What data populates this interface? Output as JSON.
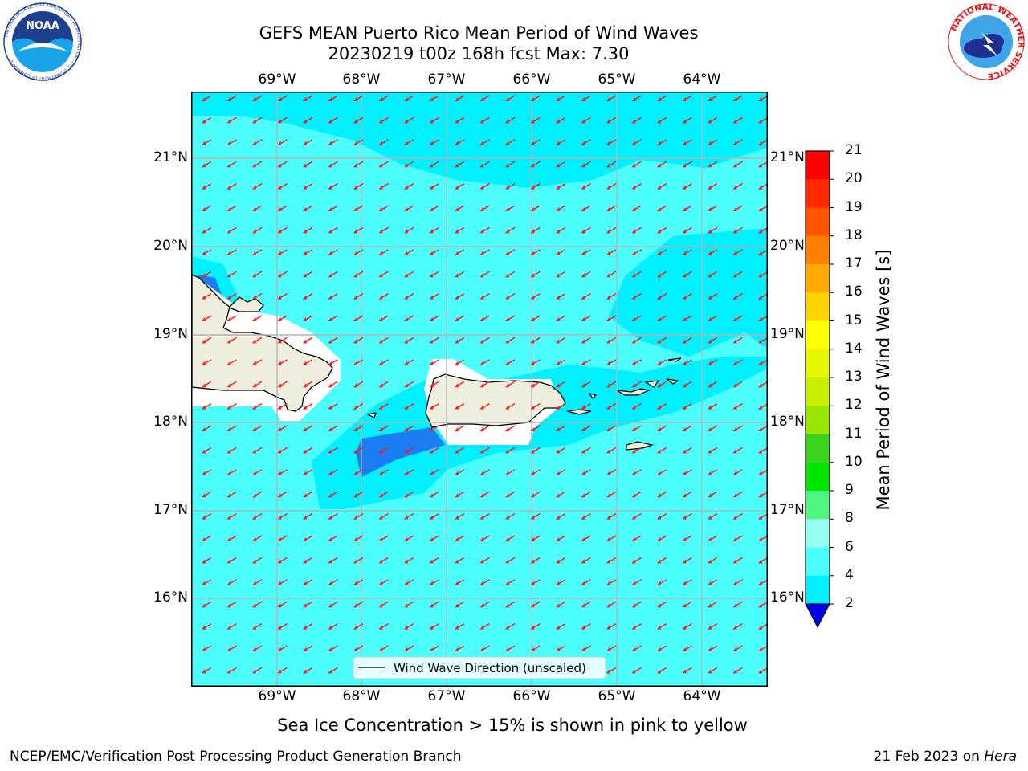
{
  "header": {
    "title_line1": "GEFS MEAN Puerto Rico Mean Period of Wind Waves",
    "title_line2": "20230219 t00z 168h fcst   Max: 7.30"
  },
  "logos": {
    "noaa_text": "NOAA",
    "noaa_ring_text": "NATIONAL OCEANIC AND ATMOSPHERIC ADMINISTRATION · U.S. DEPARTMENT OF COMMERCE",
    "nws_ring_text": "NATIONAL WEATHER SERVICE"
  },
  "map": {
    "lon_labels": [
      "69°W",
      "68°W",
      "67°W",
      "66°W",
      "65°W",
      "64°W"
    ],
    "lat_labels": [
      "21°N",
      "20°N",
      "19°N",
      "18°N",
      "17°N",
      "16°N"
    ],
    "legend_label": "Wind Wave Direction (unscaled)",
    "wind_direction": "from northeast",
    "colors": {
      "ocean_main": "#4dfefe",
      "ocean_dark": "#00e6f5",
      "ocean_deep": "#1a7ef2",
      "land": "#efefdf",
      "arrow": "#ff1a1a",
      "grid": "#b4b4b4"
    }
  },
  "colorbar": {
    "label": "Mean Period of Wind Waves [s]",
    "ticks": [
      "21",
      "20",
      "19",
      "18",
      "17",
      "16",
      "15",
      "14",
      "13",
      "12",
      "11",
      "10",
      "9",
      "8",
      "6",
      "4",
      "2"
    ],
    "colors": [
      "#ff0000",
      "#ff2a00",
      "#ff5500",
      "#ff8000",
      "#ffaa00",
      "#ffd400",
      "#ffff00",
      "#e6f500",
      "#c8f000",
      "#9be600",
      "#3cd21e",
      "#00e600",
      "#50f582",
      "#96fff0",
      "#4dfefe",
      "#00f0ff",
      "#1a7ef2",
      "#0000e6"
    ]
  },
  "note": "Sea Ice Concentration > 15% is shown in pink to yellow",
  "footer": {
    "left": "NCEP/EMC/Verification Post Processing Product Generation Branch",
    "right_date": "21 Feb 2023 on ",
    "right_host": "Hera"
  }
}
